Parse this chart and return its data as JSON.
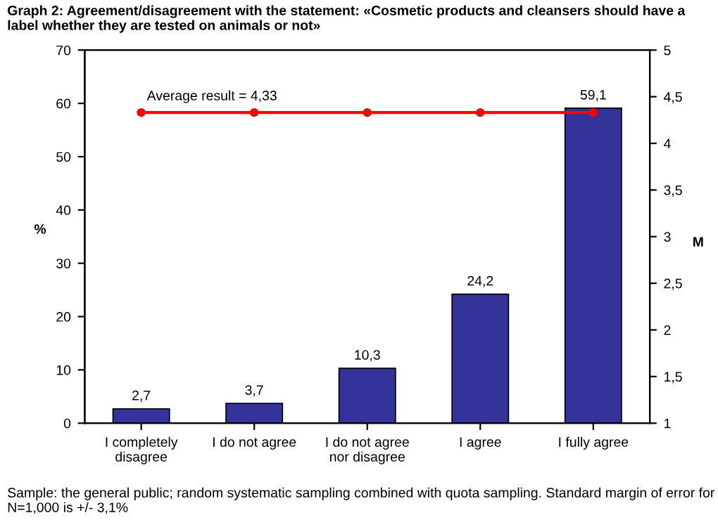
{
  "chart_data": {
    "type": "bar",
    "title": "Graph 2: Agreement/disagreement with the statement: «Cosmetic products and cleansers should have a label whether they are tested on animals or not»",
    "categories": [
      "I completely disagree",
      "I do not agree",
      "I do not agree nor disagree",
      "I agree",
      "I fully agree"
    ],
    "series": [
      {
        "color": "#333399",
        "values": [
          2.7,
          3.7,
          10.3,
          24.2,
          59.1
        ],
        "value_labels": [
          "2,7",
          "3,7",
          "10,3",
          "24,2",
          "59,1"
        ]
      },
      {
        "type": "line",
        "axis": "y2",
        "color": "#ff0000",
        "marker": "circle",
        "values": [
          4.33,
          4.33,
          4.33,
          4.33,
          4.33
        ]
      }
    ],
    "ylabel": "%",
    "y2label": "M",
    "ylim": [
      0,
      70
    ],
    "yticks": [
      0,
      10,
      20,
      30,
      40,
      50,
      60,
      70
    ],
    "y2lim": [
      1,
      5
    ],
    "y2ticks": [
      1,
      {
        "value": 1.5,
        "label": "1,5"
      },
      2,
      {
        "value": 2.5,
        "label": "2,5"
      },
      3,
      {
        "value": 3.5,
        "label": "3,5"
      },
      4,
      {
        "value": 4.5,
        "label": "4,5"
      },
      5
    ],
    "grid": false,
    "legend": false,
    "annotations": [
      "Average result = 4,33",
      "Sample: the general public; random systematic sampling combined with quota sampling. Standard margin of error for N=1,000 is +/- 3,1%"
    ]
  }
}
